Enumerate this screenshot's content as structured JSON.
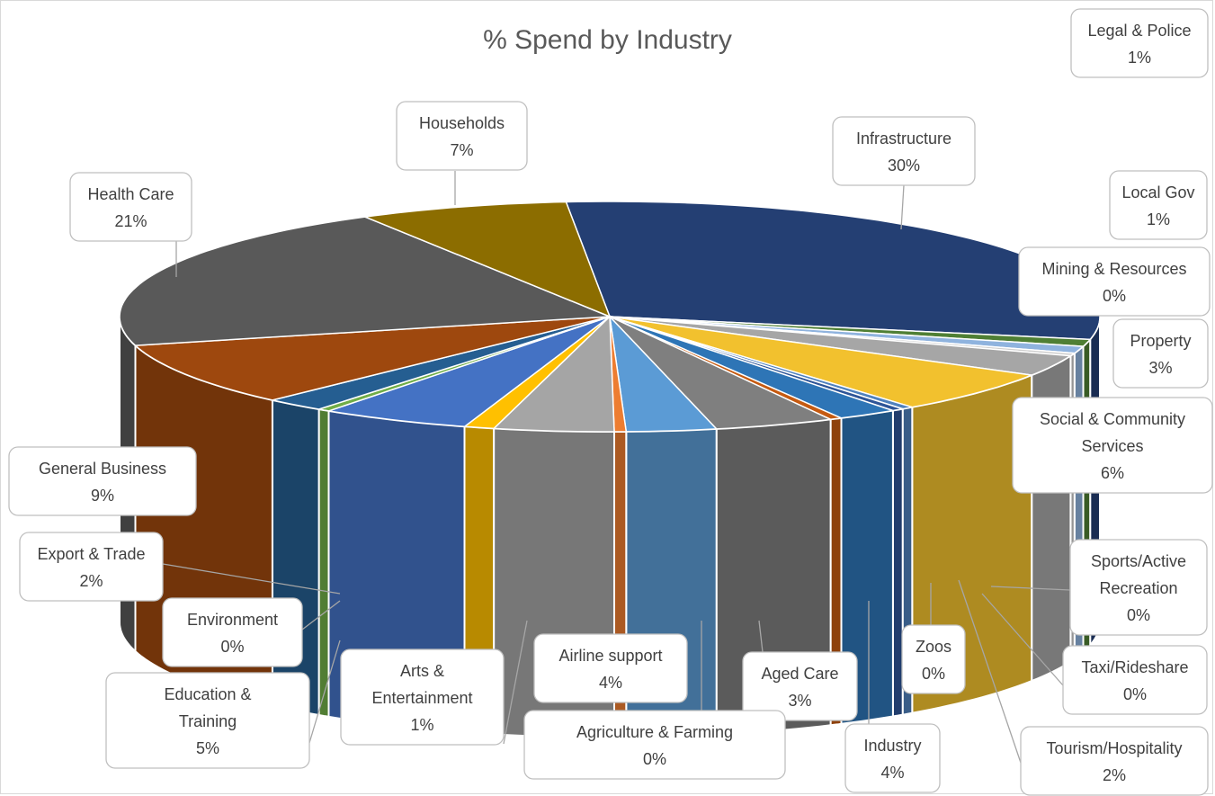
{
  "chart_data": {
    "type": "pie",
    "title": "% Spend by Industry",
    "style": "3d-exploded-none",
    "slices": [
      {
        "label": "Infrastructure",
        "value": 30,
        "display": "30%",
        "color": "#243f73"
      },
      {
        "label": "Legal & Police",
        "value": 1,
        "display": "1%",
        "color": "#4f7f34"
      },
      {
        "label": "Local Gov",
        "value": 1,
        "display": "1%",
        "color": "#8fb3de"
      },
      {
        "label": "Mining & Resources",
        "value": 0,
        "display": "0%",
        "color": "#cfcfcf"
      },
      {
        "label": "Property",
        "value": 3,
        "display": "3%",
        "color": "#a6a6a6"
      },
      {
        "label": "Social & Community Services",
        "value": 6,
        "display": "6%",
        "color": "#f2c12e"
      },
      {
        "label": "Sports/Active Recreation",
        "value": 0,
        "display": "0%",
        "color": "#4f81bd"
      },
      {
        "label": "Taxi/Rideshare",
        "value": 0,
        "display": "0%",
        "color": "#2e5597"
      },
      {
        "label": "Tourism/Hospitality",
        "value": 2,
        "display": "2%",
        "color": "#2e75b6"
      },
      {
        "label": "Zoos",
        "value": 0,
        "display": "0%",
        "color": "#c55a11"
      },
      {
        "label": "Industry",
        "value": 4,
        "display": "4%",
        "color": "#7f7f7f"
      },
      {
        "label": "Aged Care",
        "value": 3,
        "display": "3%",
        "color": "#5b9bd5"
      },
      {
        "label": "Agriculture & Farming",
        "value": 0,
        "display": "0%",
        "color": "#ed7d31"
      },
      {
        "label": "Airline support",
        "value": 4,
        "display": "4%",
        "color": "#a5a5a5"
      },
      {
        "label": "Arts & Entertainment",
        "value": 1,
        "display": "1%",
        "color": "#ffc000"
      },
      {
        "label": "Education & Training",
        "value": 5,
        "display": "5%",
        "color": "#4472c4"
      },
      {
        "label": "Environment",
        "value": 0,
        "display": "0%",
        "color": "#70ad47"
      },
      {
        "label": "Export & Trade",
        "value": 2,
        "display": "2%",
        "color": "#255e91"
      },
      {
        "label": "General Business",
        "value": 9,
        "display": "9%",
        "color": "#9e480e"
      },
      {
        "label": "Health Care",
        "value": 21,
        "display": "21%",
        "color": "#595959"
      },
      {
        "label": "Households",
        "value": 7,
        "display": "7%",
        "color": "#8c6d00"
      }
    ]
  }
}
